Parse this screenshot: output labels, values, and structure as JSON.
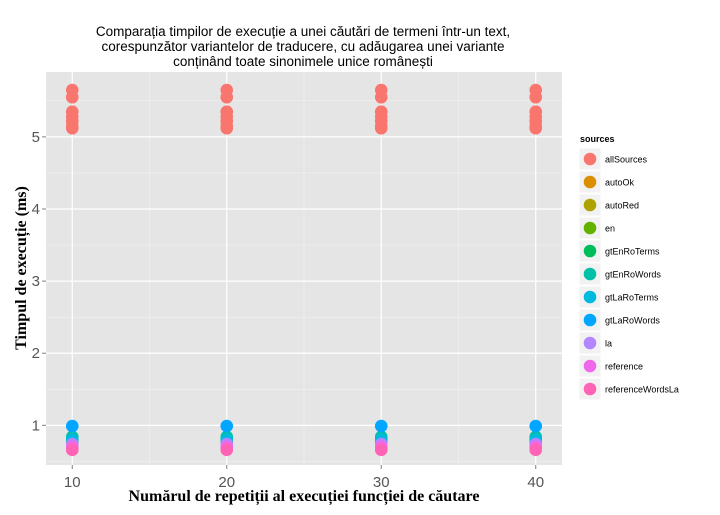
{
  "chart_data": {
    "type": "scatter",
    "title_lines": [
      "Comparația timpilor de execuție a unei căutări de termeni într-un text,",
      "corespunzător variantelor de traducere, cu adăugarea unei variante",
      "conținând toate sinonimele unice românești"
    ],
    "xlabel": "Numărul de repetiții al execuției funcției de căutare",
    "ylabel": "Timpul de execuție (ms)",
    "x_ticks": [
      10,
      20,
      30,
      40
    ],
    "y_ticks": [
      1,
      2,
      3,
      4,
      5
    ],
    "xlim": [
      8.3,
      41.7
    ],
    "ylim": [
      0.45,
      5.9
    ],
    "grid": true,
    "legend_title": "sources",
    "legend_position": "right",
    "series": [
      {
        "name": "allSources",
        "color": "#F8766D",
        "x": [
          10,
          10,
          10,
          10,
          10,
          10,
          10,
          20,
          20,
          20,
          20,
          20,
          20,
          20,
          30,
          30,
          30,
          30,
          30,
          30,
          30,
          40,
          40,
          40,
          40,
          40,
          40,
          40
        ],
        "y": [
          5.65,
          5.55,
          5.35,
          5.28,
          5.22,
          5.15,
          5.12,
          5.65,
          5.55,
          5.35,
          5.28,
          5.22,
          5.15,
          5.12,
          5.65,
          5.55,
          5.35,
          5.28,
          5.22,
          5.15,
          5.12,
          5.65,
          5.55,
          5.35,
          5.28,
          5.22,
          5.15,
          5.12
        ]
      },
      {
        "name": "autoOk",
        "color": "#DB8E00",
        "x": [
          10,
          20,
          30,
          40
        ],
        "y": [
          0.76,
          0.76,
          0.76,
          0.76
        ]
      },
      {
        "name": "autoRed",
        "color": "#AEA200",
        "x": [
          10,
          20,
          30,
          40
        ],
        "y": [
          0.77,
          0.77,
          0.77,
          0.77
        ]
      },
      {
        "name": "en",
        "color": "#64B200",
        "x": [
          10,
          20,
          30,
          40
        ],
        "y": [
          0.78,
          0.78,
          0.78,
          0.78
        ]
      },
      {
        "name": "gtEnRoTerms",
        "color": "#00BD5C",
        "x": [
          10,
          20,
          30,
          40
        ],
        "y": [
          0.82,
          0.82,
          0.82,
          0.82
        ]
      },
      {
        "name": "gtEnRoWords",
        "color": "#00C1A7",
        "x": [
          10,
          20,
          30,
          40
        ],
        "y": [
          0.84,
          0.84,
          0.84,
          0.84
        ]
      },
      {
        "name": "gtLaRoTerms",
        "color": "#00BADE",
        "x": [
          10,
          20,
          30,
          40
        ],
        "y": [
          0.8,
          0.8,
          0.8,
          0.8
        ]
      },
      {
        "name": "gtLaRoWords",
        "color": "#00A6FF",
        "x": [
          10,
          20,
          30,
          40
        ],
        "y": [
          0.99,
          0.99,
          0.99,
          0.99
        ]
      },
      {
        "name": "la",
        "color": "#B385FF",
        "x": [
          10,
          20,
          30,
          40
        ],
        "y": [
          0.74,
          0.74,
          0.74,
          0.74
        ]
      },
      {
        "name": "reference",
        "color": "#EF67EB",
        "x": [
          10,
          20,
          30,
          40
        ],
        "y": [
          0.7,
          0.7,
          0.7,
          0.7
        ]
      },
      {
        "name": "referenceWordsLa",
        "color": "#FF63B6",
        "x": [
          10,
          20,
          30,
          40
        ],
        "y": [
          0.66,
          0.66,
          0.66,
          0.66
        ]
      }
    ]
  }
}
